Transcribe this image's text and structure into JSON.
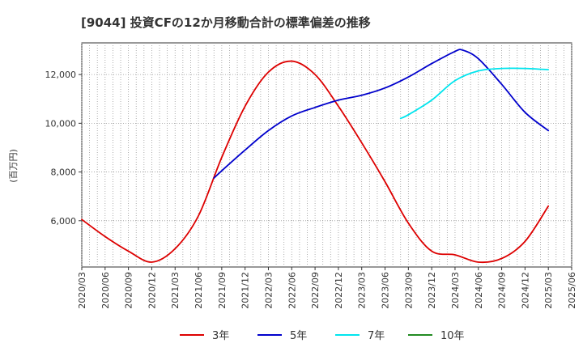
{
  "chart_data": {
    "type": "line",
    "title": "[9044]  投資CFの12か月移動合計の標準偏差の推移",
    "ylabel": "(百万円)",
    "xlabel": "",
    "x_ticks": [
      "2020/03",
      "2020/06",
      "2020/09",
      "2020/12",
      "2021/03",
      "2021/06",
      "2021/09",
      "2021/12",
      "2022/03",
      "2022/06",
      "2022/09",
      "2022/12",
      "2023/03",
      "2023/06",
      "2023/09",
      "2023/12",
      "2024/03",
      "2024/06",
      "2024/09",
      "2024/12",
      "2025/03",
      "2025/06"
    ],
    "y_ticks": [
      6000,
      8000,
      10000,
      12000
    ],
    "y_tick_labels": [
      "6,000",
      "8,000",
      "10,000",
      "12,000"
    ],
    "ylim": [
      4100,
      13300
    ],
    "grid": true,
    "legend_position": "bottom",
    "series": [
      {
        "name": "3年",
        "color": "#dd0000",
        "x": [
          "2020/03",
          "2020/06",
          "2020/09",
          "2020/12",
          "2021/03",
          "2021/06",
          "2021/09",
          "2021/12",
          "2022/03",
          "2022/06",
          "2022/09",
          "2022/12",
          "2023/03",
          "2023/06",
          "2023/09",
          "2023/12",
          "2024/03",
          "2024/06",
          "2024/09",
          "2024/12",
          "2025/03"
        ],
        "values": [
          6050,
          5350,
          4750,
          4300,
          4850,
          6200,
          8600,
          10700,
          12100,
          12550,
          12000,
          10700,
          9200,
          7600,
          5900,
          4750,
          4600,
          4300,
          4450,
          5150,
          6600
        ]
      },
      {
        "name": "5年",
        "color": "#0000cc",
        "x": [
          "2021/08",
          "2021/09",
          "2021/12",
          "2022/03",
          "2022/06",
          "2022/09",
          "2022/12",
          "2023/03",
          "2023/06",
          "2023/09",
          "2023/12",
          "2024/03",
          "2024/04",
          "2024/06",
          "2024/09",
          "2024/12",
          "2025/03"
        ],
        "values": [
          7750,
          8050,
          8900,
          9700,
          10300,
          10650,
          10950,
          11150,
          11450,
          11900,
          12450,
          12950,
          13000,
          12650,
          11600,
          10450,
          9700
        ]
      },
      {
        "name": "7年",
        "color": "#00e5ee",
        "x": [
          "2023/08",
          "2023/09",
          "2023/12",
          "2024/03",
          "2024/06",
          "2024/09",
          "2024/12",
          "2025/03"
        ],
        "values": [
          10200,
          10350,
          10950,
          11750,
          12150,
          12250,
          12250,
          12200
        ]
      },
      {
        "name": "10年",
        "color": "#228b22",
        "x": [],
        "values": []
      }
    ]
  }
}
